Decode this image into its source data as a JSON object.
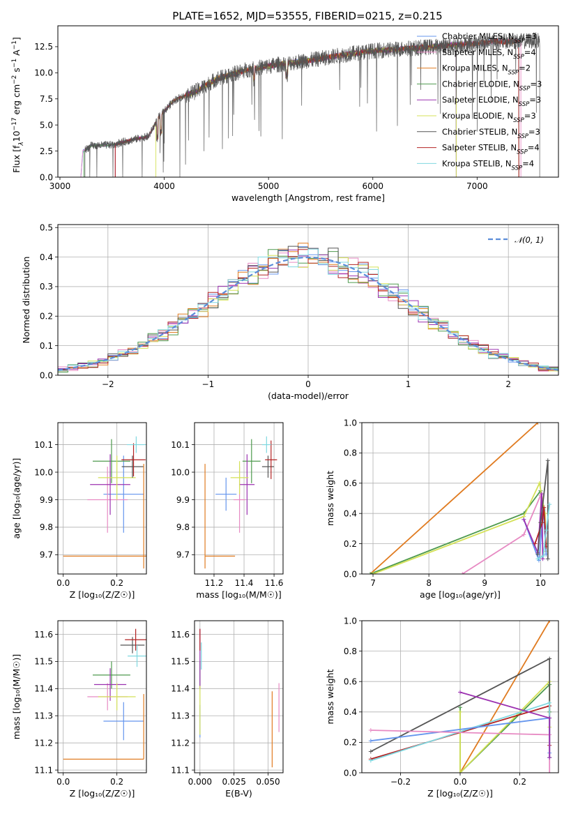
{
  "figure": {
    "title": "PLATE=1652, MJD=53555, FIBERID=0215, z=0.215"
  },
  "models": [
    {
      "name": "Chabrier MILES",
      "nssp": "3",
      "color": "#6495ed"
    },
    {
      "name": "Salpeter MILES",
      "nssp": "4",
      "color": "#e78ac3"
    },
    {
      "name": "Kroupa MILES",
      "nssp": "2",
      "color": "#e07b20"
    },
    {
      "name": "Chabrier ELODIE",
      "nssp": "3",
      "color": "#4e9a4e"
    },
    {
      "name": "Salpeter ELODIE",
      "nssp": "3",
      "color": "#9b30b0"
    },
    {
      "name": "Kroupa ELODIE",
      "nssp": "3",
      "color": "#d4e157"
    },
    {
      "name": "Chabrier STELIB",
      "nssp": "3",
      "color": "#555555"
    },
    {
      "name": "Salpeter STELIB",
      "nssp": "4",
      "color": "#b22222"
    },
    {
      "name": "Kroupa STELIB",
      "nssp": "4",
      "color": "#7fd8e0"
    }
  ],
  "chart_data": [
    {
      "id": "spectrum",
      "type": "line",
      "xlabel": "wavelength [Angstrom, rest frame]",
      "ylabel_parts": [
        "Flux [f",
        "λ",
        "10",
        "−17",
        " erg cm",
        "−2",
        " s",
        "−1",
        " A",
        "−1",
        "]"
      ],
      "xlim": [
        2980,
        7780
      ],
      "ylim": [
        0,
        14.5
      ],
      "xticks": [
        3000,
        4000,
        5000,
        6000,
        7000
      ],
      "yticks": [
        0.0,
        2.5,
        5.0,
        7.5,
        10.0,
        12.5
      ],
      "continuum": [
        [
          3200,
          0
        ],
        [
          3220,
          2.5
        ],
        [
          3300,
          3.0
        ],
        [
          3500,
          3.1
        ],
        [
          3700,
          3.6
        ],
        [
          3850,
          3.9
        ],
        [
          3950,
          5.8
        ],
        [
          4100,
          7.4
        ],
        [
          4300,
          8.2
        ],
        [
          4500,
          9.4
        ],
        [
          4800,
          10.3
        ],
        [
          5100,
          10.8
        ],
        [
          5400,
          11.2
        ],
        [
          5700,
          11.7
        ],
        [
          6000,
          12.1
        ],
        [
          6300,
          12.3
        ],
        [
          6600,
          12.5
        ],
        [
          6800,
          12.7
        ],
        [
          7000,
          12.8
        ],
        [
          7200,
          13.0
        ],
        [
          7400,
          13.0
        ],
        [
          7550,
          13.1
        ]
      ],
      "legend_position": "right"
    },
    {
      "id": "residuals",
      "type": "bar",
      "xlabel": "(data-model)/error",
      "ylabel": "Normed distribution",
      "xlim": [
        -2.5,
        2.5
      ],
      "ylim": [
        0,
        0.51
      ],
      "xticks": [
        -2,
        -1,
        0,
        1,
        2
      ],
      "xtick_labels": [
        "−2",
        "−1",
        "0",
        "1",
        "2"
      ],
      "yticks": [
        0.0,
        0.1,
        0.2,
        0.3,
        0.4,
        0.5
      ],
      "bin_width": 0.1,
      "bin_start": -2.5,
      "gaussian_label": "𝒩(0, 1)",
      "gaussian_color": "#5b8dd9",
      "grid": true,
      "legend_position": "top-right"
    },
    {
      "id": "age-vs-z",
      "type": "scatter",
      "xlabel": "Z [log₁₀(Z/Z☉)]",
      "ylabel": "age  [log₁₀(age/yr)]",
      "xlim": [
        -0.02,
        0.31
      ],
      "ylim": [
        9.63,
        10.18
      ],
      "xticks": [
        0.0,
        0.2
      ],
      "yticks": [
        9.7,
        9.8,
        9.9,
        10.0,
        10.1
      ],
      "points": [
        {
          "m": 0,
          "x": 0.225,
          "y": 9.92,
          "xe": 0.075,
          "ye": 0.14
        },
        {
          "m": 1,
          "x": 0.165,
          "y": 9.9,
          "xe": 0.075,
          "ye": 0.12
        },
        {
          "m": 2,
          "x": 0.225,
          "y": 9.695,
          "xe": 0.225,
          "ye": 0.0
        },
        {
          "m": 2,
          "x": 0.3,
          "y": 9.84,
          "xe": 0.0,
          "ye": 0.19
        },
        {
          "m": 3,
          "x": 0.18,
          "y": 10.04,
          "xe": 0.07,
          "ye": 0.08
        },
        {
          "m": 4,
          "x": 0.175,
          "y": 9.955,
          "xe": 0.075,
          "ye": 0.11
        },
        {
          "m": 5,
          "x": 0.2,
          "y": 9.98,
          "xe": 0.07,
          "ye": 0.08
        },
        {
          "m": 6,
          "x": 0.258,
          "y": 10.02,
          "xe": 0.04,
          "ye": 0.04
        },
        {
          "m": 7,
          "x": 0.262,
          "y": 10.045,
          "xe": 0.045,
          "ye": 0.06
        },
        {
          "m": 8,
          "x": 0.272,
          "y": 10.1,
          "xe": 0.035,
          "ye": 0.03
        }
      ]
    },
    {
      "id": "age-vs-mass",
      "type": "scatter",
      "xlabel": "mass [log₁₀(M/M☉)]",
      "ylabel": "",
      "xlim": [
        11.07,
        11.66
      ],
      "ylim": [
        9.63,
        10.18
      ],
      "xticks": [
        11.2,
        11.4,
        11.6
      ],
      "yticks": [
        9.7,
        9.8,
        9.9,
        10.0,
        10.1
      ],
      "points": [
        {
          "m": 0,
          "x": 11.28,
          "y": 9.92,
          "xe": 0.07,
          "ye": 0.06
        },
        {
          "m": 1,
          "x": 11.37,
          "y": 9.9,
          "xe": 0.04,
          "ye": 0.12
        },
        {
          "m": 2,
          "x": 11.24,
          "y": 9.695,
          "xe": 0.1,
          "ye": 0.0
        },
        {
          "m": 2,
          "x": 11.14,
          "y": 9.84,
          "xe": 0.0,
          "ye": 0.19
        },
        {
          "m": 3,
          "x": 11.45,
          "y": 10.04,
          "xe": 0.06,
          "ye": 0.08
        },
        {
          "m": 4,
          "x": 11.42,
          "y": 9.955,
          "xe": 0.05,
          "ye": 0.11
        },
        {
          "m": 5,
          "x": 11.37,
          "y": 9.98,
          "xe": 0.06,
          "ye": 0.06
        },
        {
          "m": 6,
          "x": 11.56,
          "y": 10.02,
          "xe": 0.04,
          "ye": 0.04
        },
        {
          "m": 7,
          "x": 11.58,
          "y": 10.045,
          "xe": 0.04,
          "ye": 0.07
        },
        {
          "m": 8,
          "x": 11.55,
          "y": 10.1,
          "xe": 0.03,
          "ye": 0.03
        }
      ]
    },
    {
      "id": "weight-vs-age",
      "type": "line",
      "xlabel": "age  [log₁₀(age/yr)]",
      "ylabel": "mass weight",
      "xlim": [
        6.8,
        10.32
      ],
      "ylim": [
        0,
        1.0
      ],
      "xticks": [
        7,
        8,
        9,
        10
      ],
      "yticks": [
        0.0,
        0.2,
        0.4,
        0.6,
        0.8,
        1.0
      ],
      "yformat": "1",
      "lines": [
        {
          "m": 2,
          "pts": [
            [
              6.95,
              0.0
            ],
            [
              9.95,
              1.0
            ]
          ]
        },
        {
          "m": 3,
          "pts": [
            [
              6.95,
              0.0
            ],
            [
              9.7,
              0.4
            ],
            [
              10.0,
              0.55
            ],
            [
              10.05,
              0.43
            ],
            [
              10.1,
              0.2
            ]
          ]
        },
        {
          "m": 5,
          "pts": [
            [
              7.0,
              0.0
            ],
            [
              9.7,
              0.38
            ],
            [
              9.98,
              0.6
            ],
            [
              10.08,
              0.4
            ],
            [
              10.1,
              0.15
            ]
          ]
        },
        {
          "m": 1,
          "pts": [
            [
              8.6,
              0.0
            ],
            [
              9.7,
              0.26
            ],
            [
              10.0,
              0.52
            ],
            [
              10.1,
              0.27
            ]
          ]
        },
        {
          "m": 0,
          "pts": [
            [
              9.7,
              0.36
            ],
            [
              9.97,
              0.09
            ],
            [
              10.05,
              0.42
            ],
            [
              10.1,
              0.13
            ]
          ]
        },
        {
          "m": 4,
          "pts": [
            [
              9.7,
              0.36
            ],
            [
              9.95,
              0.14
            ],
            [
              10.02,
              0.53
            ],
            [
              10.04,
              0.1
            ]
          ]
        },
        {
          "m": 7,
          "pts": [
            [
              9.9,
              0.2
            ],
            [
              10.03,
              0.34
            ],
            [
              10.06,
              0.44
            ],
            [
              10.1,
              0.18
            ]
          ]
        },
        {
          "m": 6,
          "pts": [
            [
              9.95,
              0.13
            ],
            [
              10.0,
              0.34
            ],
            [
              10.13,
              0.75
            ],
            [
              10.13,
              0.1
            ]
          ]
        },
        {
          "m": 8,
          "pts": [
            [
              9.95,
              0.1
            ],
            [
              10.05,
              0.12
            ],
            [
              10.1,
              0.29
            ],
            [
              10.16,
              0.46
            ]
          ]
        }
      ]
    },
    {
      "id": "mass-vs-z",
      "type": "scatter",
      "xlabel": "Z [log₁₀(Z/Z☉)]",
      "ylabel": "mass [log₁₀(M/M☉)]",
      "xlim": [
        -0.02,
        0.31
      ],
      "ylim": [
        11.09,
        11.65
      ],
      "xticks": [
        0.0,
        0.2
      ],
      "yticks": [
        11.1,
        11.2,
        11.3,
        11.4,
        11.5,
        11.6
      ],
      "points": [
        {
          "m": 0,
          "x": 0.225,
          "y": 11.28,
          "xe": 0.075,
          "ye": 0.07
        },
        {
          "m": 1,
          "x": 0.165,
          "y": 11.37,
          "xe": 0.075,
          "ye": 0.05
        },
        {
          "m": 2,
          "x": 0.15,
          "y": 11.14,
          "xe": 0.15,
          "ye": 0.0
        },
        {
          "m": 2,
          "x": 0.3,
          "y": 11.26,
          "xe": 0.0,
          "ye": 0.12
        },
        {
          "m": 3,
          "x": 0.18,
          "y": 11.45,
          "xe": 0.07,
          "ye": 0.05
        },
        {
          "m": 4,
          "x": 0.175,
          "y": 11.415,
          "xe": 0.06,
          "ye": 0.06
        },
        {
          "m": 5,
          "x": 0.2,
          "y": 11.37,
          "xe": 0.07,
          "ye": 0.05
        },
        {
          "m": 6,
          "x": 0.258,
          "y": 11.56,
          "xe": 0.045,
          "ye": 0.03
        },
        {
          "m": 7,
          "x": 0.27,
          "y": 11.58,
          "xe": 0.04,
          "ye": 0.04
        },
        {
          "m": 8,
          "x": 0.275,
          "y": 11.52,
          "xe": 0.035,
          "ye": 0.04
        }
      ]
    },
    {
      "id": "mass-vs-ebv",
      "type": "scatter",
      "xlabel": "E(B-V)",
      "ylabel": "",
      "xlim": [
        -0.004,
        0.061
      ],
      "ylim": [
        11.09,
        11.65
      ],
      "xticks": [
        0.0,
        0.025,
        0.05
      ],
      "xtick_labels": [
        "0.000",
        "0.025",
        "0.050"
      ],
      "yticks": [
        11.1,
        11.2,
        11.3,
        11.4,
        11.5,
        11.6
      ],
      "points": [
        {
          "m": 0,
          "x": 0.0,
          "y": 11.28,
          "xe": 0.0,
          "ye": 0.06
        },
        {
          "m": 1,
          "x": 0.058,
          "y": 11.33,
          "xe": 0.0,
          "ye": 0.09
        },
        {
          "m": 2,
          "x": 0.053,
          "y": 11.25,
          "xe": 0.0,
          "ye": 0.14
        },
        {
          "m": 3,
          "x": 0.0,
          "y": 11.45,
          "xe": 0.0,
          "ye": 0.05
        },
        {
          "m": 4,
          "x": 0.0,
          "y": 11.51,
          "xe": 0.0,
          "ye": 0.11
        },
        {
          "m": 5,
          "x": 0.0,
          "y": 11.32,
          "xe": 0.0,
          "ye": 0.09
        },
        {
          "m": 7,
          "x": 0.0,
          "y": 11.58,
          "xe": 0.0,
          "ye": 0.04
        },
        {
          "m": 8,
          "x": 0.001,
          "y": 11.52,
          "xe": 0.0,
          "ye": 0.05
        }
      ]
    },
    {
      "id": "weight-vs-z",
      "type": "line",
      "xlabel": "Z [log₁₀(Z/Z☉)]",
      "ylabel": "mass weight",
      "xlim": [
        -0.33,
        0.33
      ],
      "ylim": [
        0,
        1.0
      ],
      "xticks": [
        -0.2,
        0.0,
        0.2
      ],
      "xtick_labels": [
        "−0.2",
        "0.0",
        "0.2"
      ],
      "yticks": [
        0.0,
        0.2,
        0.4,
        0.6,
        0.8,
        1.0
      ],
      "yformat": "1",
      "lines": [
        {
          "m": 2,
          "pts": [
            [
              0.0,
              0.0
            ],
            [
              0.3,
              1.0
            ]
          ]
        },
        {
          "m": 3,
          "pts": [
            [
              0.0,
              0.43
            ],
            [
              0.0,
              0.0
            ],
            [
              0.3,
              0.58
            ],
            [
              0.3,
              0.4
            ]
          ]
        },
        {
          "m": 5,
          "pts": [
            [
              0.0,
              0.4
            ],
            [
              0.0,
              0.0
            ],
            [
              0.3,
              0.6
            ],
            [
              0.3,
              0.3
            ]
          ]
        },
        {
          "m": 6,
          "pts": [
            [
              -0.3,
              0.14
            ],
            [
              0.3,
              0.75
            ],
            [
              0.3,
              0.1
            ]
          ]
        },
        {
          "m": 7,
          "pts": [
            [
              -0.3,
              0.09
            ],
            [
              0.3,
              0.44
            ],
            [
              0.3,
              0.18
            ]
          ]
        },
        {
          "m": 8,
          "pts": [
            [
              -0.3,
              0.08
            ],
            [
              0.3,
              0.46
            ],
            [
              0.3,
              0.1
            ]
          ]
        },
        {
          "m": 0,
          "pts": [
            [
              -0.3,
              0.21
            ],
            [
              0.3,
              0.36
            ],
            [
              0.3,
              0.13
            ]
          ]
        },
        {
          "m": 1,
          "pts": [
            [
              -0.3,
              0.28
            ],
            [
              0.3,
              0.25
            ],
            [
              0.3,
              0.0
            ]
          ]
        },
        {
          "m": 4,
          "pts": [
            [
              0.0,
              0.53
            ],
            [
              0.3,
              0.36
            ],
            [
              0.3,
              0.1
            ]
          ]
        }
      ]
    }
  ]
}
